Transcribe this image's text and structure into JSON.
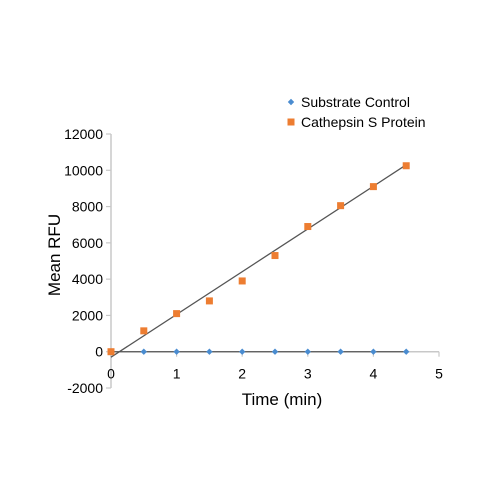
{
  "chart_data": {
    "type": "scatter",
    "xlabel": "Time (min)",
    "ylabel": "Mean RFU",
    "xlim": [
      0,
      5
    ],
    "ylim": [
      -2000,
      12000
    ],
    "x_ticks": [
      0,
      1,
      2,
      3,
      4,
      5
    ],
    "y_ticks": [
      -2000,
      0,
      2000,
      4000,
      6000,
      8000,
      10000,
      12000
    ],
    "grid": false,
    "legend_position": "top-right",
    "series": [
      {
        "name": "Substrate Control",
        "marker": "diamond",
        "color": "#4A8CD0",
        "x": [
          0,
          0.5,
          1,
          1.5,
          2,
          2.5,
          3,
          3.5,
          4,
          4.5
        ],
        "y": [
          0,
          0,
          0,
          0,
          0,
          0,
          0,
          0,
          0,
          0
        ],
        "trendline": {
          "x": [
            0,
            4.5
          ],
          "y": [
            0,
            0
          ],
          "color": "#555555"
        }
      },
      {
        "name": "Cathepsin S Protein",
        "marker": "square",
        "color": "#ED7D31",
        "x": [
          0,
          0.5,
          1,
          1.5,
          2,
          2.5,
          3,
          3.5,
          4,
          4.5
        ],
        "y": [
          0,
          1150,
          2100,
          2800,
          3900,
          5300,
          6900,
          8050,
          9100,
          10250
        ],
        "trendline": {
          "x": [
            0,
            4.5
          ],
          "y": [
            -300,
            10300
          ],
          "color": "#555555"
        }
      }
    ]
  }
}
